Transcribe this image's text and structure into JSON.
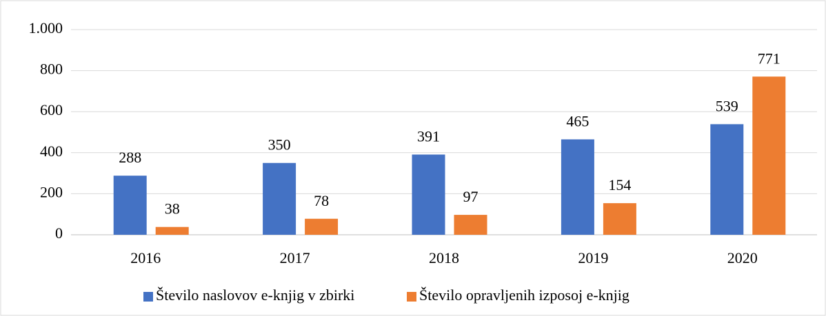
{
  "chart_data": {
    "type": "bar",
    "categories": [
      "2016",
      "2017",
      "2018",
      "2019",
      "2020"
    ],
    "series": [
      {
        "name": "Število naslovov e-knjig v zbirki",
        "color": "#4472c4",
        "values": [
          288,
          350,
          391,
          465,
          539
        ]
      },
      {
        "name": "Število opravljenih izposoj e-knjig",
        "color": "#ed7d31",
        "values": [
          38,
          78,
          97,
          154,
          771
        ]
      }
    ],
    "ylim": [
      0,
      1000
    ],
    "yticks": [
      0,
      200,
      400,
      600,
      800,
      {
        "value": 1000,
        "label": "1.000"
      }
    ],
    "grid": true,
    "legend": "bottom",
    "data_labels": true
  }
}
